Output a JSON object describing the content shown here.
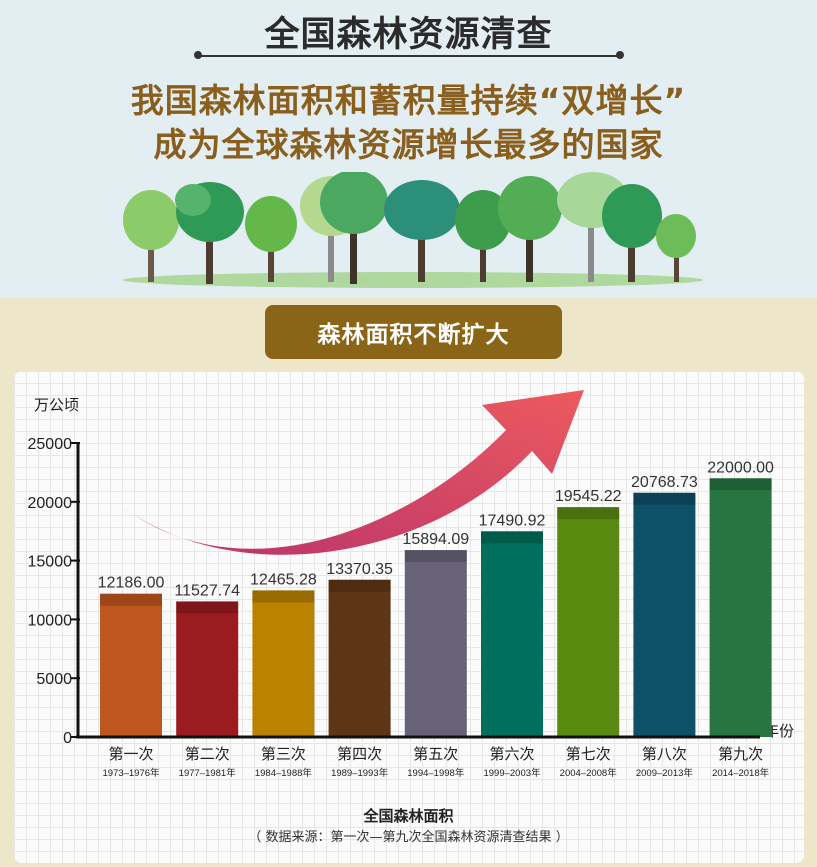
{
  "header": {
    "title": "全国森林资源清查",
    "headline_line1": "我国森林面积和蓄积量持续“双增长”",
    "headline_line2": "成为全球森林资源增长最多的国家"
  },
  "banner": {
    "label": "森林面积不断扩大"
  },
  "chart_data": {
    "type": "bar",
    "unit_label": "万公顷",
    "x_axis_unit": "年份",
    "ylim": [
      0,
      25000
    ],
    "yticks": [
      "0",
      "5000",
      "10000",
      "15000",
      "20000",
      "25000"
    ],
    "categories": [
      "第一次",
      "第二次",
      "第三次",
      "第四次",
      "第五次",
      "第六次",
      "第七次",
      "第八次",
      "第九次"
    ],
    "periods": [
      "1973–1976年",
      "1977–1981年",
      "1984–1988年",
      "1989–1993年",
      "1994–1998年",
      "1999–2003年",
      "2004–2008年",
      "2009–2013年",
      "2014–2018年"
    ],
    "values": [
      12186.0,
      11527.74,
      12465.28,
      13370.35,
      15894.09,
      17490.92,
      19545.22,
      20768.73,
      22000.0
    ],
    "value_labels": [
      "12186.00",
      "11527.74",
      "12465.28",
      "13370.35",
      "15894.09",
      "17490.92",
      "19545.22",
      "20768.73",
      "22000.00"
    ],
    "colors": [
      "#c0561f",
      "#9a1c21",
      "#bb8200",
      "#5e3615",
      "#686278",
      "#00705c",
      "#5b8a10",
      "#0e5068",
      "#287542"
    ],
    "grid": true,
    "legend": "none"
  },
  "footer": {
    "chart_title": "全国森林面积",
    "source": "（ 数据来源：第一次—第九次全国森林资源清查结果 ）"
  }
}
